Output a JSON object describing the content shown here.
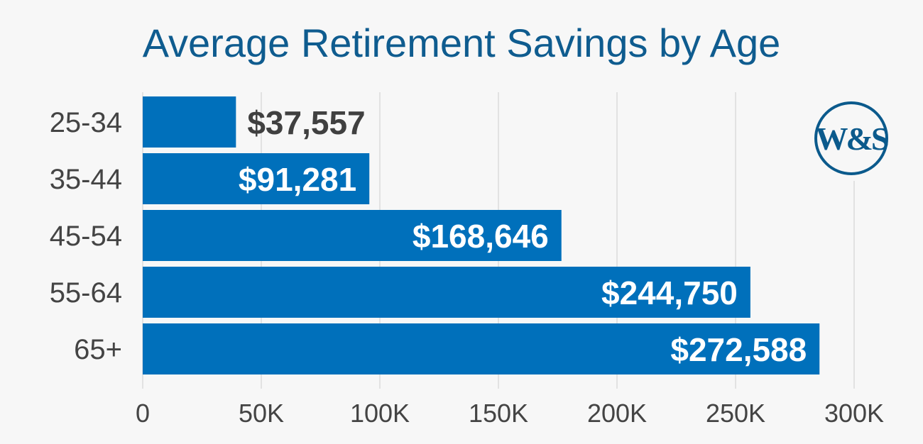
{
  "chart_data": {
    "type": "bar",
    "orientation": "horizontal",
    "title": "Average Retirement Savings by Age",
    "categories": [
      "25-34",
      "35-44",
      "45-54",
      "55-64",
      "65+"
    ],
    "values": [
      37557,
      91281,
      168646,
      244750,
      272588
    ],
    "data_labels": [
      "$37,557",
      "$91,281",
      "$168,646",
      "$244,750",
      "$272,588"
    ],
    "xlim": [
      0,
      300000
    ],
    "x_ticks": [
      0,
      50000,
      100000,
      150000,
      200000,
      250000,
      300000
    ],
    "x_tick_labels": [
      "0",
      "50K",
      "100K",
      "150K",
      "200K",
      "250K",
      "300K"
    ],
    "grid": "vertical",
    "bar_color": "#0070bb",
    "title_color": "#0f5c8f",
    "logo": {
      "text": "W&S",
      "color": "#0b5a8c"
    }
  }
}
